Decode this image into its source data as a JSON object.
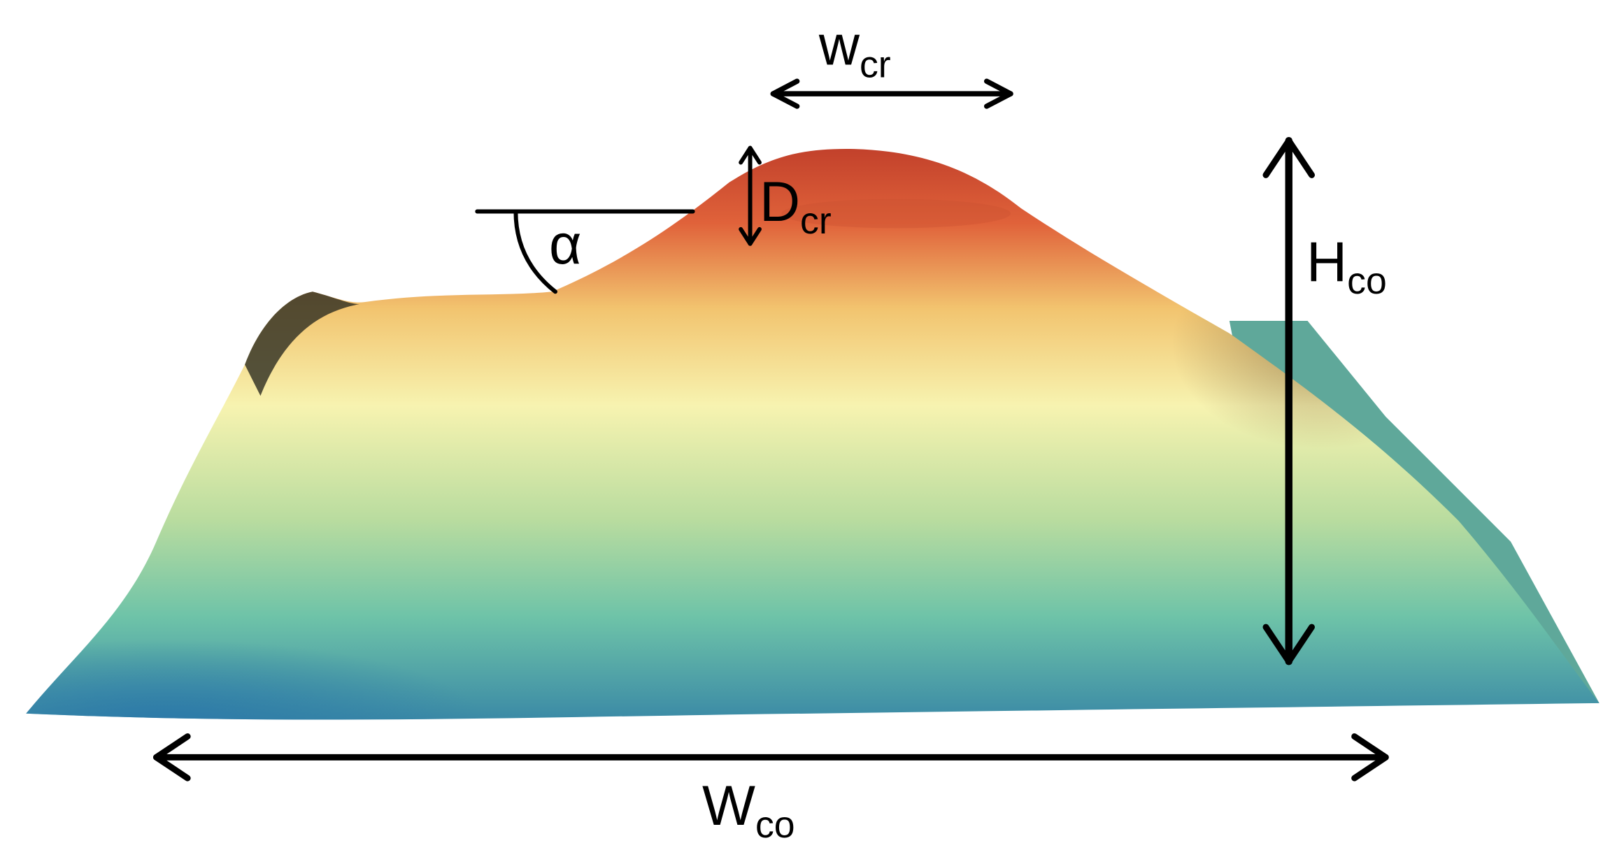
{
  "labels": {
    "w_cr": {
      "main": "w",
      "sub": "cr"
    },
    "D_cr": {
      "main": "D",
      "sub": "cr"
    },
    "alpha": {
      "main": "α"
    },
    "H_co": {
      "main": "H",
      "sub": "co"
    },
    "W_co": {
      "main": "W",
      "sub": "co"
    }
  }
}
